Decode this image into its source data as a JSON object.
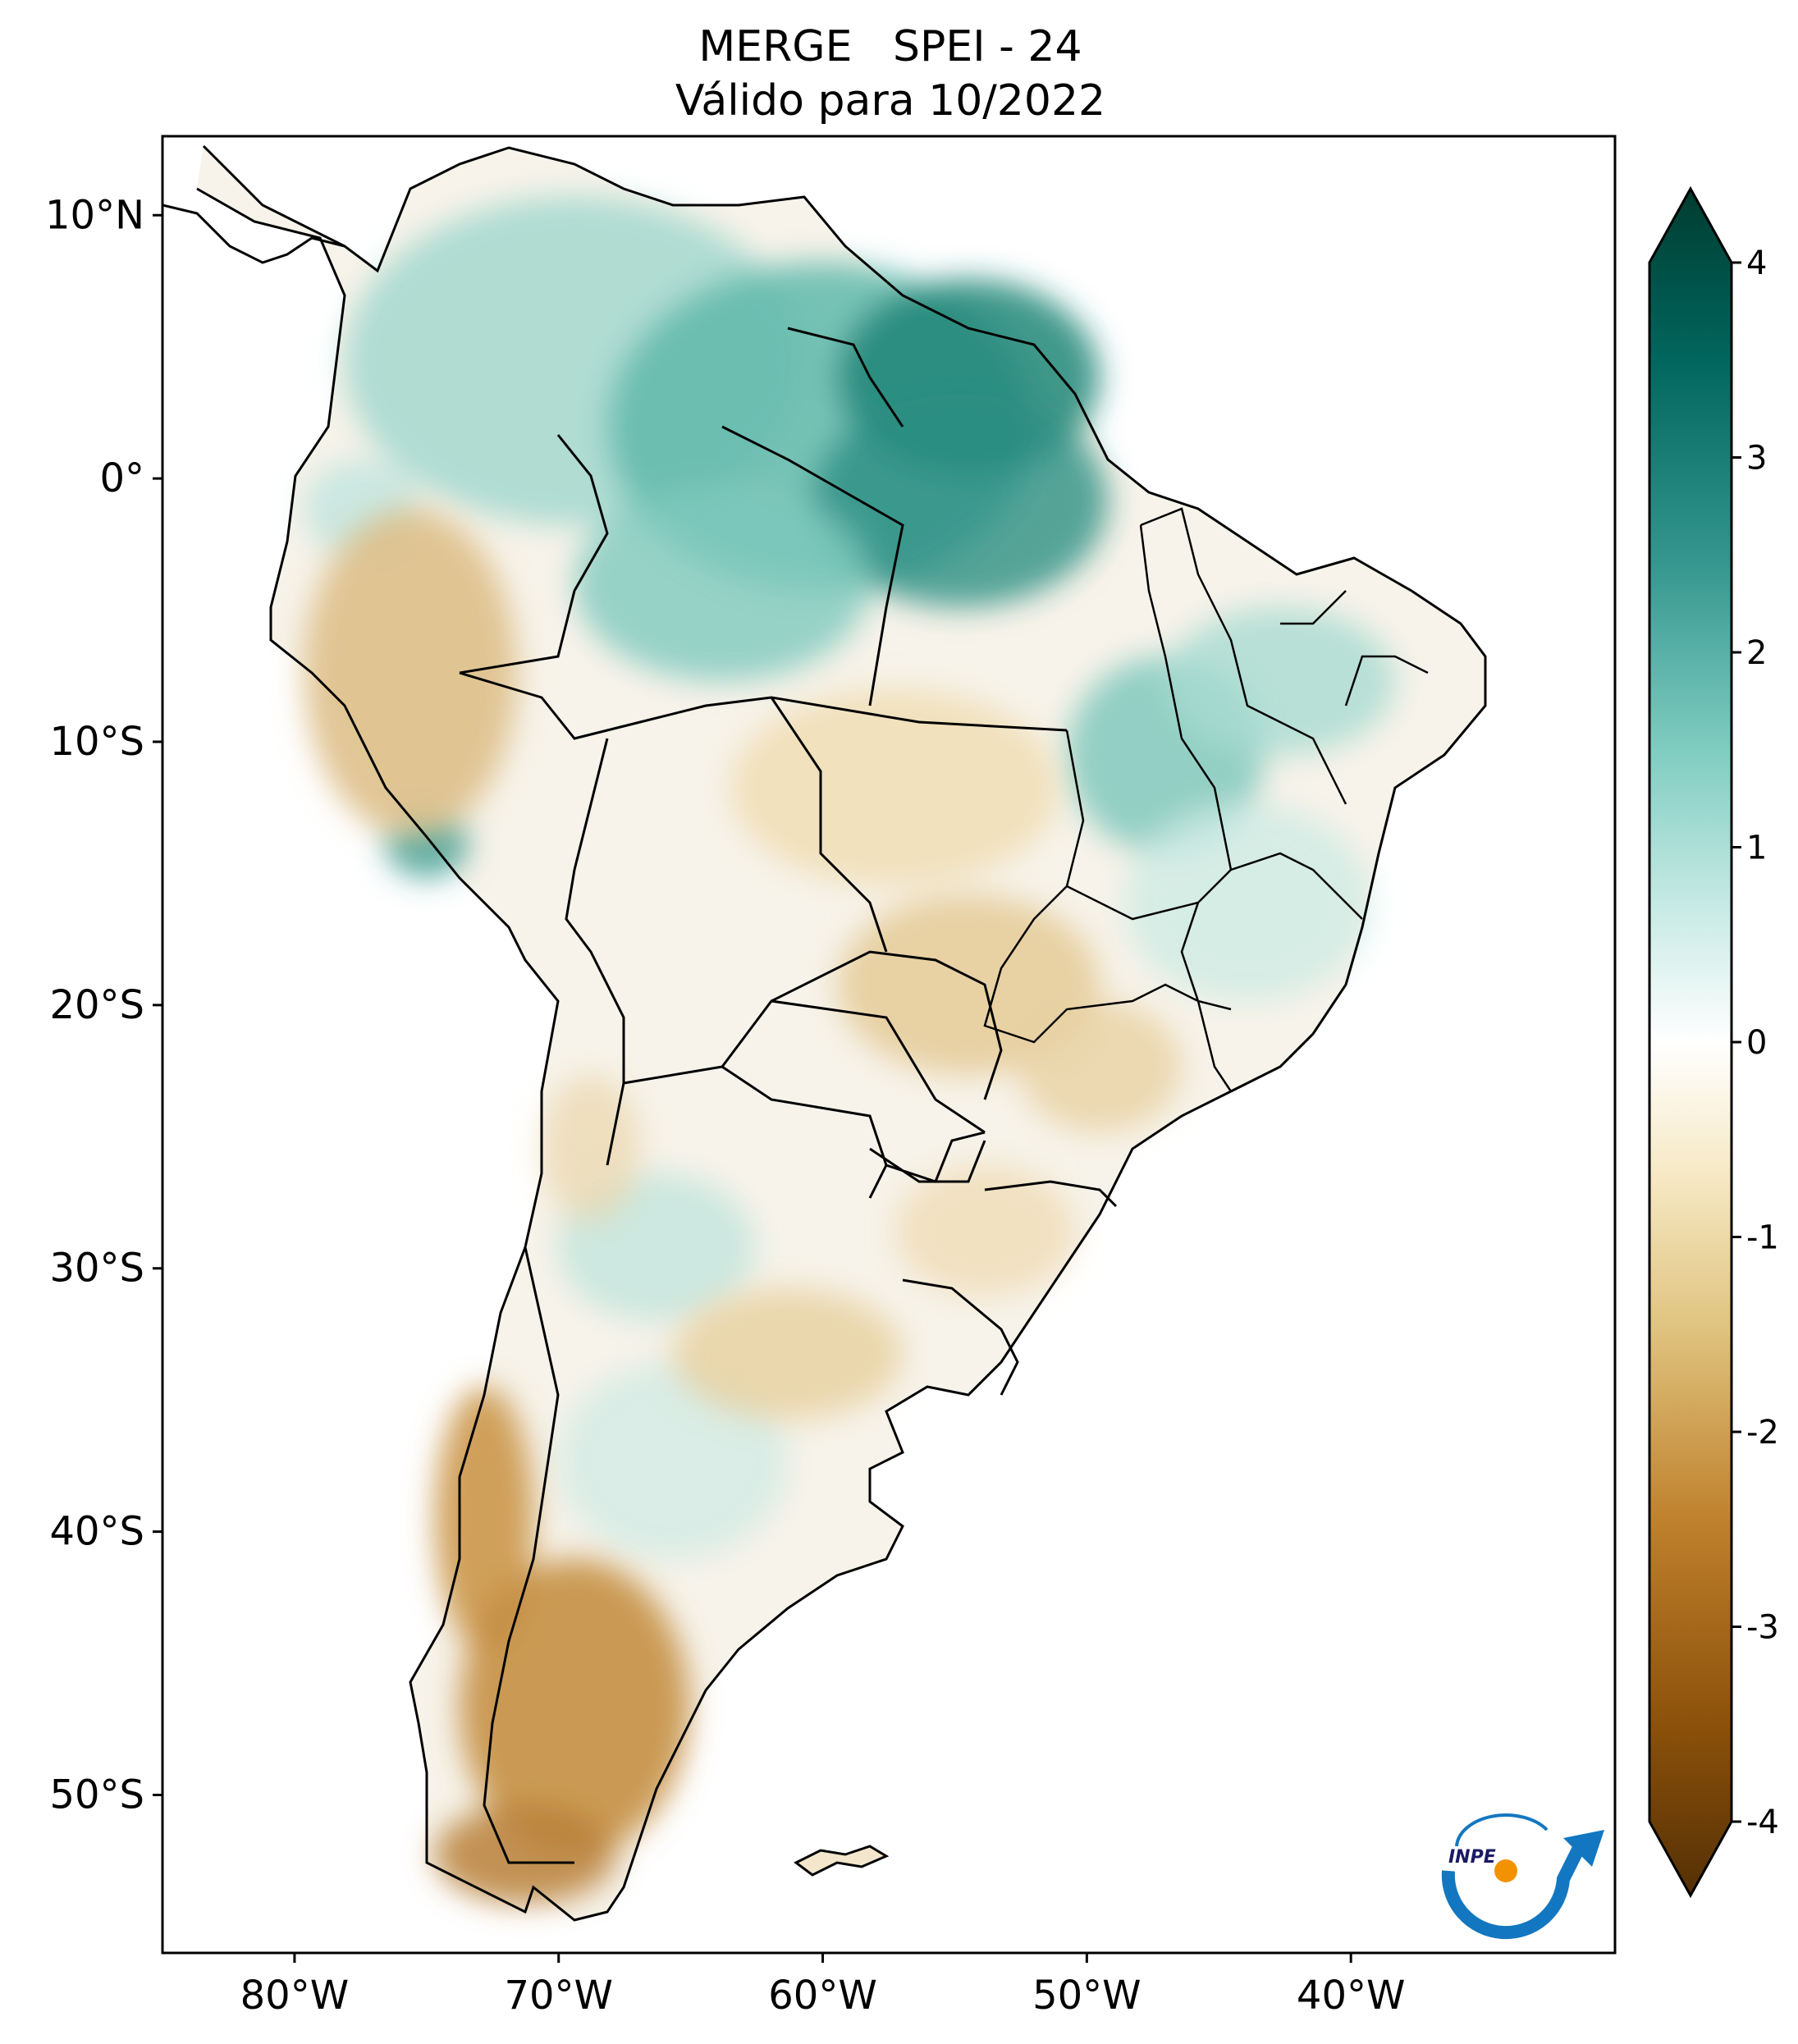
{
  "title": {
    "line1": "MERGE   SPEI - 24",
    "line2": "Válido para 10/2022"
  },
  "map": {
    "lat_ticks": [
      {
        "value": 10,
        "label": "10°N"
      },
      {
        "value": 0,
        "label": "0°"
      },
      {
        "value": -10,
        "label": "10°S"
      },
      {
        "value": -20,
        "label": "20°S"
      },
      {
        "value": -30,
        "label": "30°S"
      },
      {
        "value": -40,
        "label": "40°S"
      },
      {
        "value": -50,
        "label": "50°S"
      }
    ],
    "lon_ticks": [
      {
        "value": -80,
        "label": "80°W"
      },
      {
        "value": -70,
        "label": "70°W"
      },
      {
        "value": -60,
        "label": "60°W"
      },
      {
        "value": -50,
        "label": "50°W"
      },
      {
        "value": -40,
        "label": "40°W"
      }
    ],
    "lon_range": [
      -85,
      -30
    ],
    "lat_range": [
      -56,
      13
    ]
  },
  "colorbar": {
    "ticks": [
      "4",
      "3",
      "2",
      "1",
      "0",
      "-1",
      "-2",
      "-3",
      "-4"
    ],
    "range": [
      -4,
      4
    ],
    "colors": [
      "#543005",
      "#8c510a",
      "#bf812d",
      "#dfc27d",
      "#f6e8c3",
      "#ffffff",
      "#c7eae5",
      "#80cdc1",
      "#35978f",
      "#01665e",
      "#003c30"
    ]
  },
  "logo": {
    "text": "INPE"
  }
}
